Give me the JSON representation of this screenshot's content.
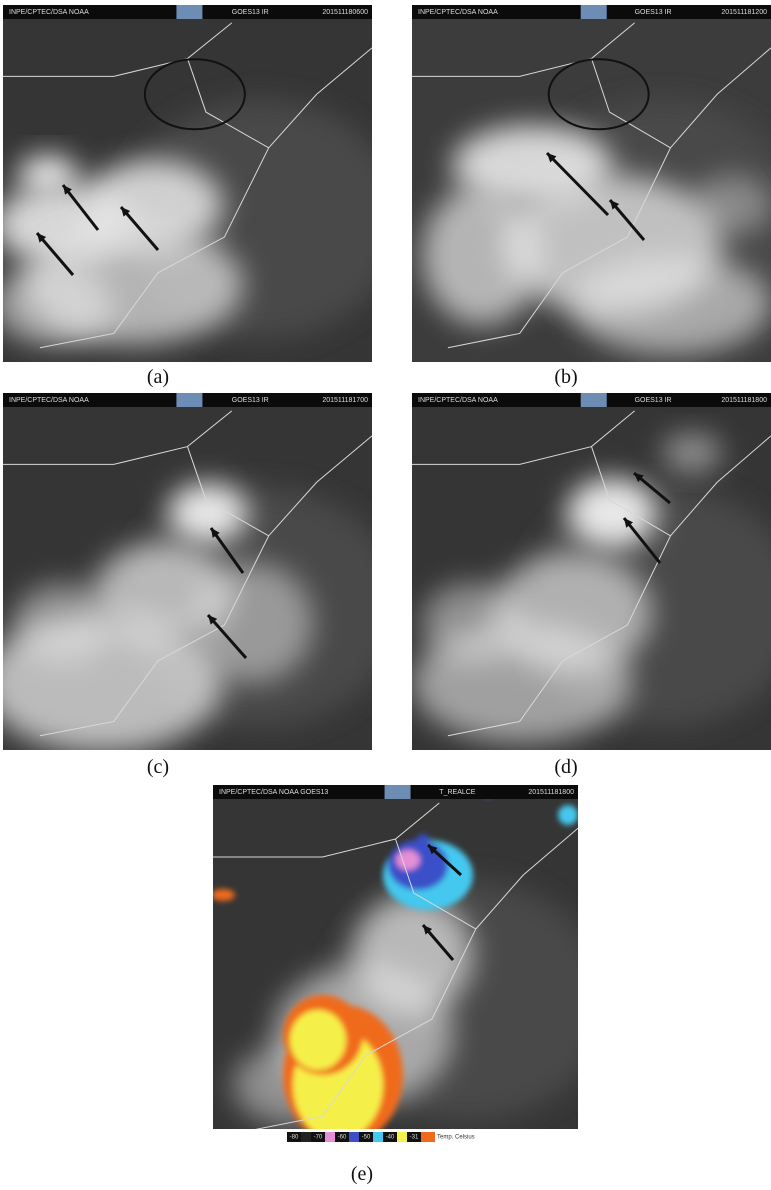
{
  "panels": [
    {
      "header": {
        "left": "INPE/CPTEC/DSA   NOAA",
        "middle": "GOES13 IR",
        "right": "201511180600"
      },
      "label": "(a)"
    },
    {
      "header": {
        "left": "INPE/CPTEC/DSA   NOAA",
        "middle": "GOES13 IR",
        "right": "201511181200"
      },
      "label": "(b)"
    },
    {
      "header": {
        "left": "INPE/CPTEC/DSA   NOAA",
        "middle": "GOES13 IR",
        "right": "201511181700"
      },
      "label": "(c)"
    },
    {
      "header": {
        "left": "INPE/CPTEC/DSA   NOAA",
        "middle": "GOES13 IR",
        "right": "201511181800"
      },
      "label": "(d)"
    },
    {
      "header": {
        "left": "INPE/CPTEC/DSA NOAA GOES13",
        "middle": "T_REALCE",
        "right": "201511181800"
      },
      "label": "(e)"
    }
  ],
  "colorbar": {
    "labels": [
      "-80",
      "-70",
      "-60",
      "-50",
      "-40",
      "-31"
    ],
    "unit": "Temp. Celsius"
  }
}
